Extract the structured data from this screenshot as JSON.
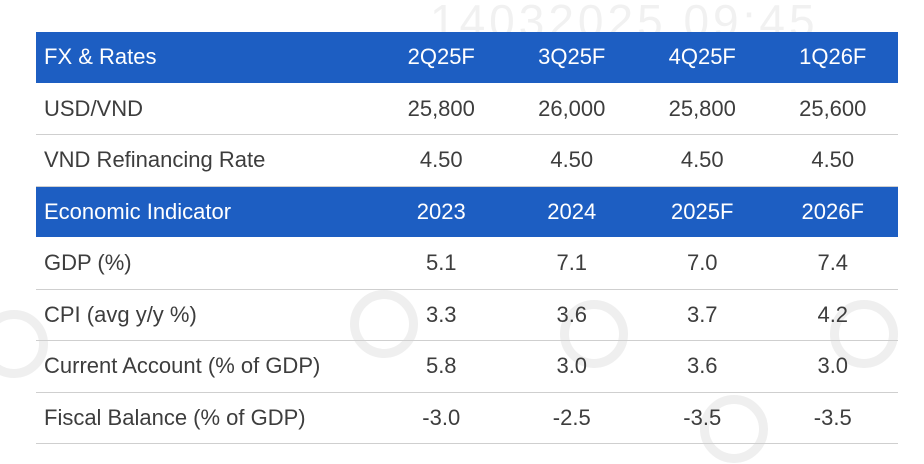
{
  "colors": {
    "header_bg": "#1d5ec2",
    "header_text": "#ffffff",
    "body_text": "#3d3d3d"
  },
  "watermark": "14032025 09:45",
  "fx_rates": {
    "title": "FX & Rates",
    "periods": [
      "2Q25F",
      "3Q25F",
      "4Q25F",
      "1Q26F"
    ],
    "rows": [
      {
        "label": "USD/VND",
        "values": [
          "25,800",
          "26,000",
          "25,800",
          "25,600"
        ]
      },
      {
        "label": "VND Refinancing Rate",
        "values": [
          "4.50",
          "4.50",
          "4.50",
          "4.50"
        ]
      }
    ]
  },
  "economic": {
    "title": "Economic Indicator",
    "periods": [
      "2023",
      "2024",
      "2025F",
      "2026F"
    ],
    "rows": [
      {
        "label": "GDP (%)",
        "values": [
          "5.1",
          "7.1",
          "7.0",
          "7.4"
        ]
      },
      {
        "label": "CPI (avg y/y %)",
        "values": [
          "3.3",
          "3.6",
          "3.7",
          "4.2"
        ]
      },
      {
        "label": "Current Account (% of GDP)",
        "values": [
          "5.8",
          "3.0",
          "3.6",
          "3.0"
        ]
      },
      {
        "label": "Fiscal Balance (% of GDP)",
        "values": [
          "-3.0",
          "-2.5",
          "-3.5",
          "-3.5"
        ]
      }
    ]
  }
}
